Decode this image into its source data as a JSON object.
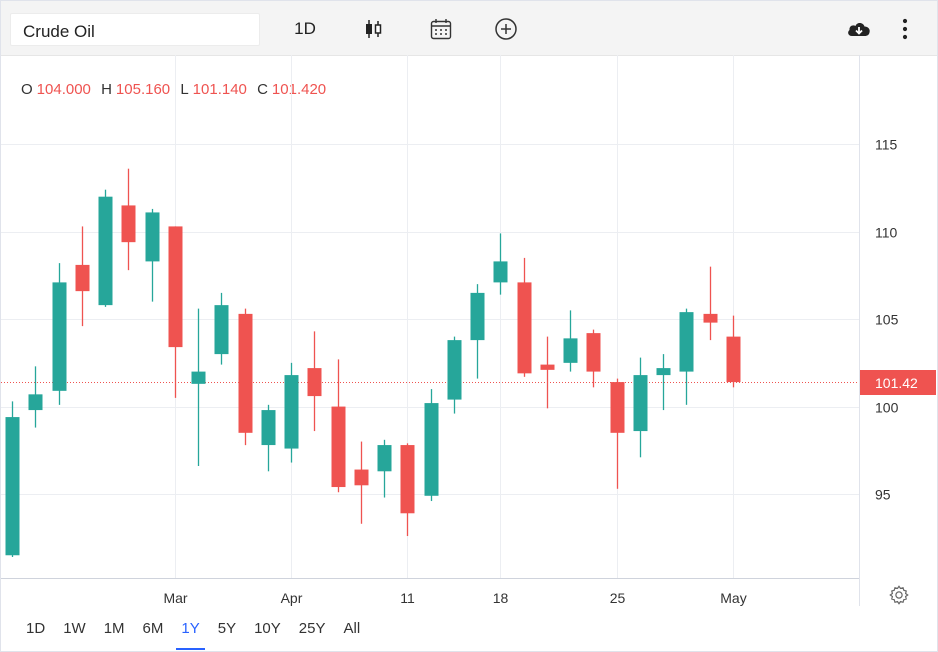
{
  "toolbar": {
    "symbol": "Crude Oil",
    "interval": "1D"
  },
  "ohlc": {
    "o_label": "O",
    "o": "104.000",
    "h_label": "H",
    "h": "105.160",
    "l_label": "L",
    "l": "101.140",
    "c_label": "C",
    "c": "101.420"
  },
  "ranges": [
    "1D",
    "1W",
    "1M",
    "6M",
    "1Y",
    "5Y",
    "10Y",
    "25Y",
    "All"
  ],
  "active_range": "1Y",
  "colors": {
    "up": "#26a69a",
    "down": "#ef5350",
    "grid": "#eceef2",
    "price_line": "#ef5350",
    "active_range": "#2962ff"
  },
  "icons": [
    "candlestick-icon",
    "calendar-icon",
    "add-circle-icon",
    "cloud-download-icon",
    "more-vertical-icon",
    "gear-icon"
  ],
  "chart_data": {
    "type": "candlestick",
    "yticks": [
      95,
      100,
      105,
      110,
      115
    ],
    "ylim": [
      90.2,
      120.1
    ],
    "xticks": [
      {
        "label": "Mar",
        "index": 7
      },
      {
        "label": "Apr",
        "index": 12
      },
      {
        "label": "11",
        "index": 17
      },
      {
        "label": "18",
        "index": 21
      },
      {
        "label": "25",
        "index": 26
      },
      {
        "label": "May",
        "index": 31
      }
    ],
    "last_price": 101.42,
    "last_price_label": "101.42",
    "candles": [
      {
        "o": 91.5,
        "h": 100.3,
        "l": 91.4,
        "c": 99.4
      },
      {
        "o": 99.8,
        "h": 102.3,
        "l": 98.8,
        "c": 100.7
      },
      {
        "o": 100.9,
        "h": 108.2,
        "l": 100.1,
        "c": 107.1
      },
      {
        "o": 108.1,
        "h": 110.3,
        "l": 104.6,
        "c": 106.6
      },
      {
        "o": 105.8,
        "h": 112.4,
        "l": 105.7,
        "c": 112.0
      },
      {
        "o": 111.5,
        "h": 113.6,
        "l": 107.8,
        "c": 109.4
      },
      {
        "o": 108.3,
        "h": 111.3,
        "l": 106.0,
        "c": 111.1
      },
      {
        "o": 110.3,
        "h": 110.3,
        "l": 100.5,
        "c": 103.4
      },
      {
        "o": 101.3,
        "h": 105.6,
        "l": 96.6,
        "c": 102.0
      },
      {
        "o": 103.0,
        "h": 106.5,
        "l": 102.4,
        "c": 105.8
      },
      {
        "o": 105.3,
        "h": 105.6,
        "l": 97.8,
        "c": 98.5
      },
      {
        "o": 97.8,
        "h": 100.1,
        "l": 96.3,
        "c": 99.8
      },
      {
        "o": 97.6,
        "h": 102.5,
        "l": 96.8,
        "c": 101.8
      },
      {
        "o": 102.2,
        "h": 104.3,
        "l": 98.6,
        "c": 100.6
      },
      {
        "o": 100.0,
        "h": 102.7,
        "l": 95.1,
        "c": 95.4
      },
      {
        "o": 96.4,
        "h": 98.0,
        "l": 93.3,
        "c": 95.5
      },
      {
        "o": 96.3,
        "h": 98.1,
        "l": 94.8,
        "c": 97.8
      },
      {
        "o": 97.8,
        "h": 97.9,
        "l": 92.6,
        "c": 93.9
      },
      {
        "o": 94.9,
        "h": 101.0,
        "l": 94.6,
        "c": 100.2
      },
      {
        "o": 100.4,
        "h": 104.0,
        "l": 99.6,
        "c": 103.8
      },
      {
        "o": 103.8,
        "h": 107.0,
        "l": 101.6,
        "c": 106.5
      },
      {
        "o": 107.1,
        "h": 109.9,
        "l": 106.4,
        "c": 108.3
      },
      {
        "o": 107.1,
        "h": 108.5,
        "l": 101.7,
        "c": 101.9
      },
      {
        "o": 102.4,
        "h": 104.0,
        "l": 99.9,
        "c": 102.1
      },
      {
        "o": 102.5,
        "h": 105.5,
        "l": 102.0,
        "c": 103.9
      },
      {
        "o": 104.2,
        "h": 104.4,
        "l": 101.1,
        "c": 102.0
      },
      {
        "o": 101.4,
        "h": 101.6,
        "l": 95.3,
        "c": 98.5
      },
      {
        "o": 98.6,
        "h": 102.8,
        "l": 97.1,
        "c": 101.8
      },
      {
        "o": 101.8,
        "h": 103.0,
        "l": 99.8,
        "c": 102.2
      },
      {
        "o": 102.0,
        "h": 105.6,
        "l": 100.1,
        "c": 105.4
      },
      {
        "o": 105.3,
        "h": 108.0,
        "l": 103.8,
        "c": 104.8
      },
      {
        "o": 104.0,
        "h": 105.2,
        "l": 101.1,
        "c": 101.4
      }
    ]
  }
}
